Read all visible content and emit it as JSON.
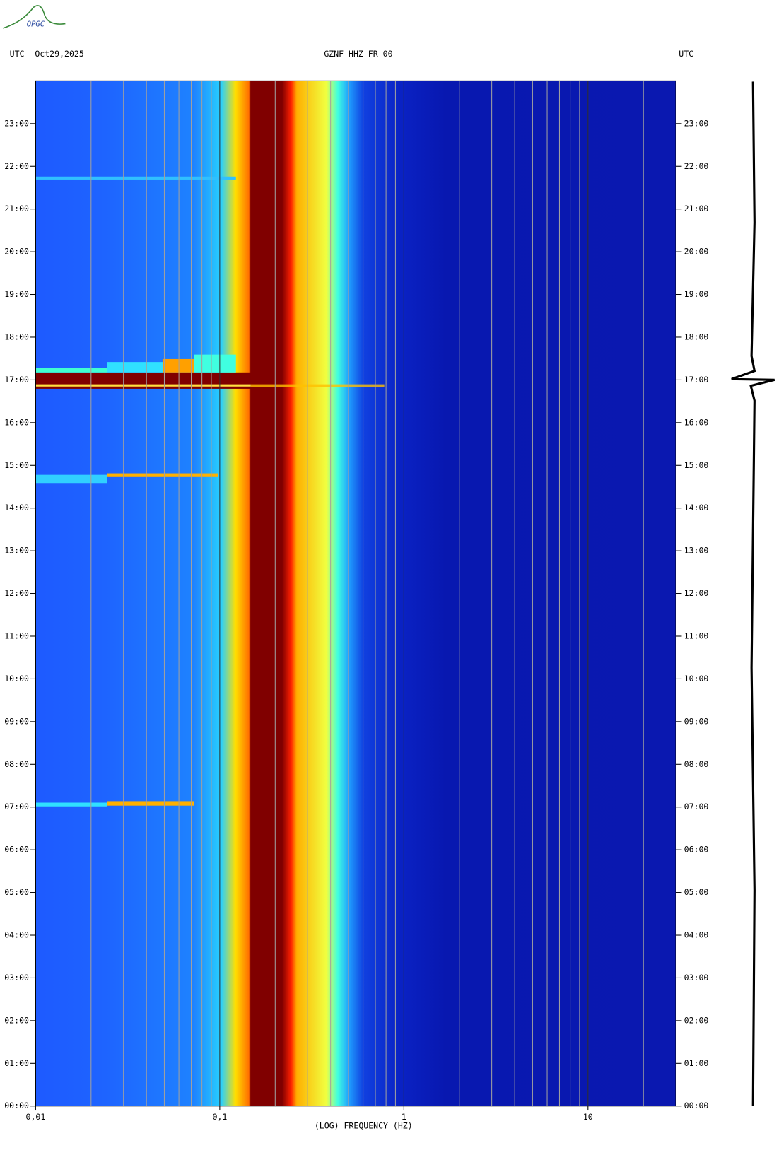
{
  "chart_data": {
    "type": "spectrogram",
    "logo": "OPGC",
    "left_label": "UTC",
    "date": "Oct29,2025",
    "title": "GZNF HHZ FR 00",
    "right_label": "UTC",
    "xlabel": "(LOG) FREQUENCY (HZ)",
    "xscale": "log",
    "xlim": [
      0.01,
      30
    ],
    "xticks": [
      {
        "value": 0.01,
        "label": "0,01"
      },
      {
        "value": 0.1,
        "label": "0,1"
      },
      1,
      10
    ],
    "xminorticks": [
      0.02,
      0.03,
      0.04,
      0.05,
      0.06,
      0.07,
      0.08,
      0.09,
      0.2,
      0.3,
      0.4,
      0.5,
      0.6,
      0.7,
      0.8,
      0.9,
      2,
      3,
      4,
      5,
      6,
      7,
      8,
      9,
      20
    ],
    "ylim": [
      0,
      24
    ],
    "yticks": [
      {
        "value": 0,
        "label": "00:00"
      },
      {
        "value": 1,
        "label": "01:00"
      },
      {
        "value": 2,
        "label": "02:00"
      },
      {
        "value": 3,
        "label": "03:00"
      },
      {
        "value": 4,
        "label": "04:00"
      },
      {
        "value": 5,
        "label": "05:00"
      },
      {
        "value": 6,
        "label": "06:00"
      },
      {
        "value": 7,
        "label": "07:00"
      },
      {
        "value": 8,
        "label": "08:00"
      },
      {
        "value": 9,
        "label": "09:00"
      },
      {
        "value": 10,
        "label": "10:00"
      },
      {
        "value": 11,
        "label": "11:00"
      },
      {
        "value": 12,
        "label": "12:00"
      },
      {
        "value": 13,
        "label": "13:00"
      },
      {
        "value": 14,
        "label": "14:00"
      },
      {
        "value": 15,
        "label": "15:00"
      },
      {
        "value": 16,
        "label": "16:00"
      },
      {
        "value": 17,
        "label": "17:00"
      },
      {
        "value": 18,
        "label": "18:00"
      },
      {
        "value": 19,
        "label": "19:00"
      },
      {
        "value": 20,
        "label": "20:00"
      },
      {
        "value": 21,
        "label": "21:00"
      },
      {
        "value": 22,
        "label": "22:00"
      },
      {
        "value": 23,
        "label": "23:00"
      }
    ],
    "grid": true
  }
}
